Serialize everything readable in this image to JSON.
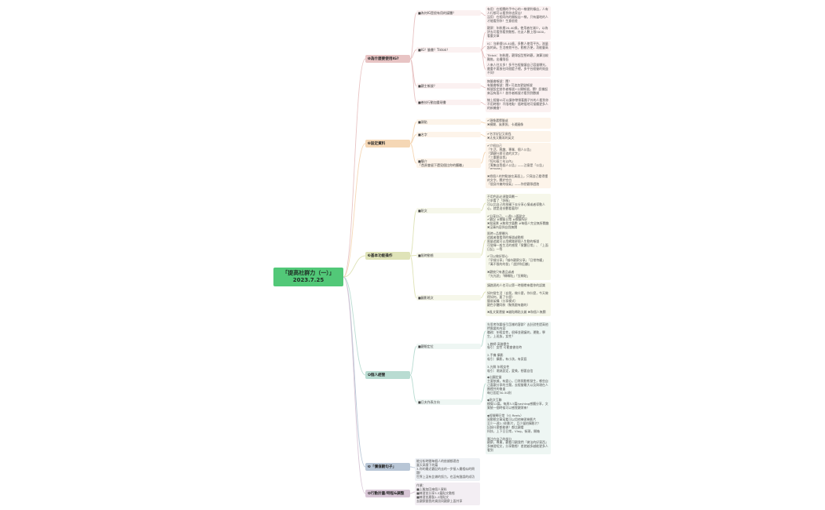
{
  "root": {
    "title": "「提高社群力（一）」",
    "date": "2023.7.25",
    "color": "#52c878"
  },
  "branches": [
    {
      "label": "❶為什麼要使用IG?",
      "color": "#e8c4c4",
      "tint": "#fbf1f1",
      "subs": [
        {
          "label": "■為何IG是很有用的媒體？",
          "leaves": [
            "有用：在相關的手中心的一樣便利條店，人有人行都可以看到你這家店！\n沒用：在相同內的開板店一樣，只有當地的人才能看到你！生意很差"
          ]
        },
        {
          "label": "■IG？臉書？Tiktok？",
          "leaves": [
            "觀眾：年齡層20-40歲，使用者在減少，以為評去可看到看到動態，社友人數上限5000，看重文章",
            "IG：年齡層18-40歲，多數人使用平台，流量起的高，生活感覺平台，動態方便，功能豐高",
            "Tiktok：年齡層，觀眾起型態碎觀，演算法較難推，出權限低",
            "人來人往太多！多平台經營讓自己容量爆光，最重不要放在同個籃子裡，多平台經營的效益不同！"
          ]
        },
        {
          "label": "■觀主帳號？",
          "leaves": [
            "無臉書帳號：關！\n有臉書帳號：關+可追加更變帳號\n帳號設定創作者帳號+公開帳號，關！設備起來沒有客人！創作者帳號才看到到數據"
          ]
        },
        {
          "label": "■善技行動加重現書",
          "leaves": [
            "線上經營IG可以讓你帶領著圈子外的人看到你\n不用時間！不限地點！隨時隨地可接觸更多人的新機會！"
          ]
        }
      ]
    },
    {
      "label": "❷設定資料",
      "color": "#f5d7b5",
      "tint": "#fdf4ea",
      "subs": [
        {
          "label": "■頭貼",
          "leaves": [
            "✔頭像選擇臉或\n✖模糊、風景照、卡通圖像"
          ]
        },
        {
          "label": "■名字",
          "leaves": [
            "✔名字好記又易找\n✖太長又難寫的英文"
          ]
        },
        {
          "label": "■簡介\n「首頁會留下還見個比你的觸職」",
          "leaves": [
            "✔介紹自己\n「生活、興趣、專業、個人公告」\n「讀觀什麼可追的文字」\n「三重聽自我」\n「短句兩三句以內」\n「蒐集自我個人公告」——注意是「公告」\n「emoan」\n\n✖把個人的特點放在真面上，只寫自己看得懂的文字，關於空白\n「個身外擁的吸氣」——你把觀眾趕跑"
          ]
        }
      ]
    },
    {
      "label": "❸基本功能操作",
      "color": "#dfe3b8",
      "tint": "#f6f7ea",
      "subs": [
        {
          "label": "■貼文",
          "leaves": [
            "不用色彩必須整齊劃一\n只求看了「舒服」\n可以比自己的拍攝下去分享心情或者導動人心，就是這份數看著你！\n\n✔分享自己，一週1-2篇貼文\n✔觀記 #標籤日常 #標籤所好\n✖批風景 #無效字篇數 #每個人完全無所關趣\n✖沒事內容與自我無關"
          ]
        },
        {
          "label": "■限時動態",
          "leaves": [
            "限時=品牌曝光\n追蹤者會看到的帳號或動態\n限量追蹤可以用網路更個人生動的帳號\n可發揮一般生活的感覺「實體日常」、「上面日記」一等\n\n✔可以做好那心\n「早餐分享」「城市觀察分享」「日常特權」「萬不限的的發」「週評和回顧」\n\n✖觀統只有產品或者\n「光光說」「轉轉貼」「狂轉貼」"
          ]
        },
        {
          "label": "■圖影格文",
          "leaves": [
            "讓路過的人也可以第一時間帶來看你的認識\n\n如何發生活（自我，做什麼，你什麼，今天做得如何，要了什麼）\n簡易架構（分享模式）\n觀色字體同款（聚焦跟有趣的）\n\n✖亂文案運營 ✖雜貼轉貼太雜 ✖和個人無關"
          ]
        }
      ]
    },
    {
      "label": "❹個人經營",
      "color": "#b9dcd2",
      "tint": "#eef6f3",
      "subs": [
        {
          "label": "■觀眼定位",
          "leaves": [
            "先思考你要吸引怎樣的客群？去針對性提高他們需要的內容\n職務：年輕女性，很棒並建議的，運動，學生，上班族，女性？\n\n1.教師 高階學生\n吸引：女性 可能會書花時\n\n2.手機 攝影\n吸引：攝影，有小孩，有家庭\n\n3.光鮮 年輕女性\n吸引：潮流設定，愛美，想要自信"
          ]
        },
        {
          "label": "■日夫作表方向",
          "leaves": [
            "◆出圖定量\n主要依據，有愛心，日常照動態發生，哪些自己喜歡分享的主題，去經營最大以及與現在人圈裡共的後輩\n每日固定30-50則\n\n◆貼文互聯\n模擬12篇，每周3-5篇hashtag感觸分享，文案統一個時候可以感覺觀眾來！\n\n◆經營轉日常（IG Reels）\n寫動態文章寫看可以用他練習幾影片\n至少一週2-3則影片，且少量拍攝影片！\n記錄什麼都能做！都比觀看\n科技，上下日日常，Vlog，街頭，開箱\n\n專注在自己的部分\n觀察，專業，觀看可觀我們「做法的好東西」多練習短文，分享動態！差就越多越能更多人看到"
          ]
        }
      ]
    },
    {
      "label": "❺「價值觀句子」",
      "color": "#b8c6d6",
      "tint": "#eef1f5",
      "leaves": [
        "能分析時間每個人的依據都適合\n當天高需下的篇\n3-你的最近觀記的去的一步接入最相似的問題！\n世界上沒有比做的努力，也沒有錯誤的成功"
      ]
    },
    {
      "label": "❻行動計畫/時程&調整",
      "color": "#d8c6d6",
      "tint": "#f3eef3",
      "leaves": [
        "作業：\n■上臉加回來個人資料\n■練習並分享3-5篇貼文動態\n■練習並產製1-2限貼文\n去觀察跟我的資訊同觀察上面共享"
      ]
    }
  ]
}
